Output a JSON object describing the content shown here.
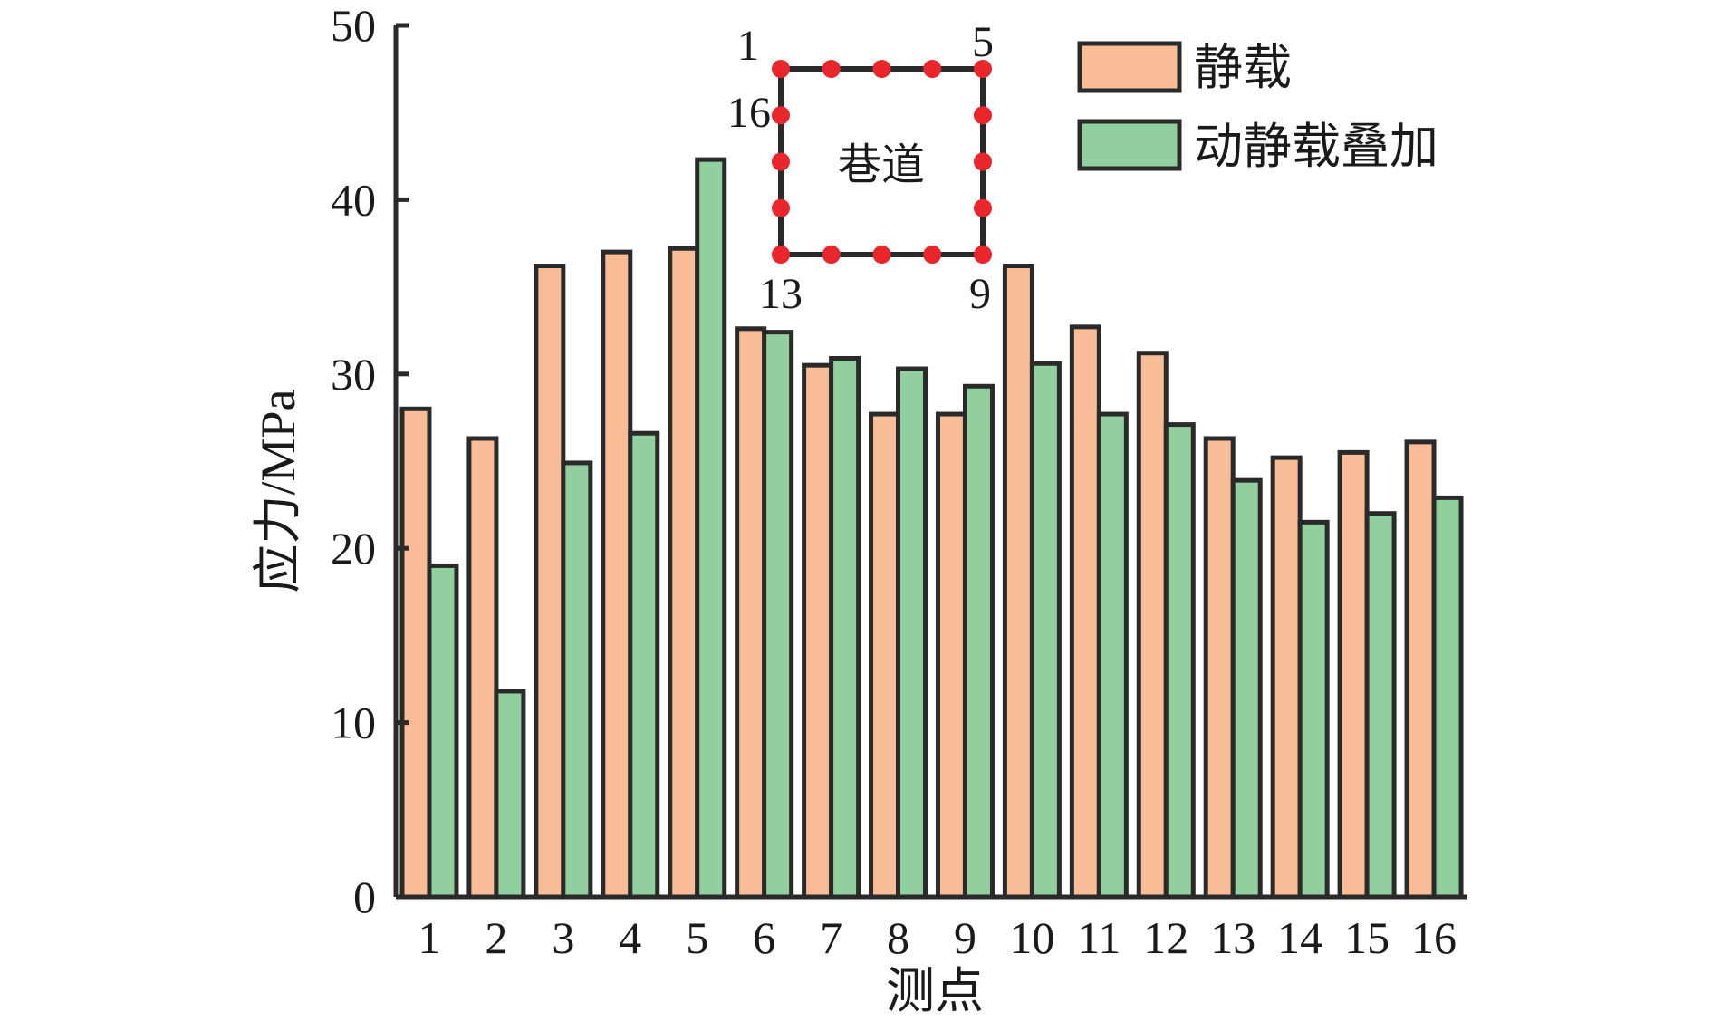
{
  "chart_data": {
    "type": "bar",
    "xlabel": "测点",
    "ylabel": "应力/MPa",
    "ylim": [
      0,
      50
    ],
    "yticks": [
      "0",
      "10",
      "20",
      "30",
      "40",
      "50"
    ],
    "categories": [
      "1",
      "2",
      "3",
      "4",
      "5",
      "6",
      "7",
      "8",
      "9",
      "10",
      "11",
      "12",
      "13",
      "14",
      "15",
      "16"
    ],
    "series": [
      {
        "name": "静载",
        "color": "#f8bd96",
        "values": [
          28.0,
          26.3,
          36.2,
          37.0,
          37.2,
          32.6,
          30.5,
          27.7,
          27.7,
          36.2,
          32.7,
          31.2,
          26.3,
          25.2,
          25.5,
          26.1
        ]
      },
      {
        "name": "动静载叠加",
        "color": "#91d09e",
        "values": [
          19.0,
          11.8,
          24.9,
          26.6,
          42.3,
          32.4,
          30.9,
          30.3,
          29.3,
          30.6,
          27.7,
          27.1,
          23.9,
          21.5,
          22.0,
          22.9
        ]
      }
    ],
    "legend": "top-right",
    "grid": false,
    "inset": {
      "label": "巷道",
      "corner_labels": [
        "1",
        "5",
        "16",
        "13",
        "9"
      ],
      "point_color": "#e8262b"
    }
  }
}
